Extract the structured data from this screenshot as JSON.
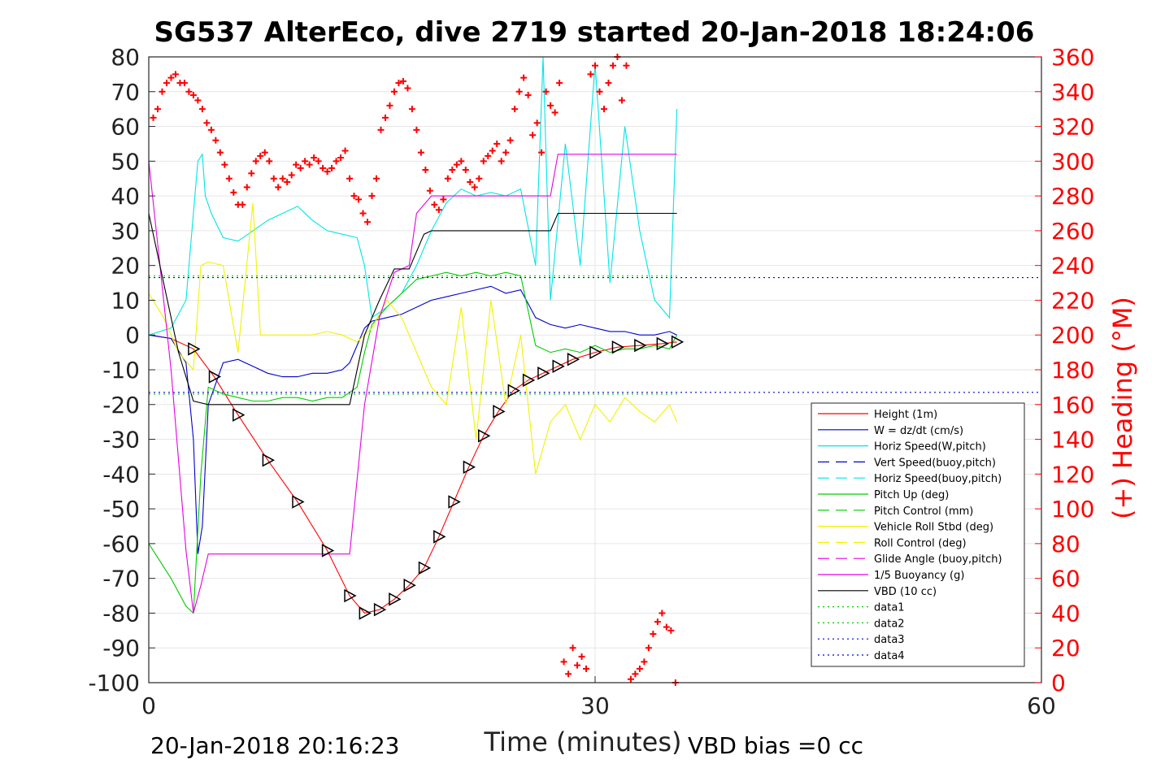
{
  "chart_data": {
    "type": "line",
    "title": "SG537 AlterEco, dive 2719 started 20-Jan-2018 18:24:06",
    "xlabel": "Time (minutes)",
    "ylabel_right": "(+) Heading (°M)",
    "xlim": [
      0,
      60
    ],
    "ylim": [
      -100,
      80
    ],
    "ylim_right": [
      0,
      360
    ],
    "x_ticks": [
      "0",
      "30",
      "60"
    ],
    "y_ticks": [
      "80",
      "70",
      "60",
      "50",
      "40",
      "30",
      "20",
      "10",
      "0",
      "-10",
      "-20",
      "-30",
      "-40",
      "-50",
      "-60",
      "-70",
      "-80",
      "-90",
      "-100"
    ],
    "y_ticks_right": [
      "360",
      "340",
      "320",
      "300",
      "280",
      "260",
      "240",
      "220",
      "200",
      "180",
      "160",
      "140",
      "120",
      "100",
      "80",
      "60",
      "40",
      "20",
      "0"
    ],
    "grid": true,
    "legend_position": "bottom-right",
    "footer_left": "20-Jan-2018 20:16:23",
    "footer_right": "VBD bias =0 cc",
    "legend": [
      {
        "label": "Height (1m)",
        "color": "#ff0000",
        "dash": "solid"
      },
      {
        "label": "W = dz/dt (cm/s)",
        "color": "#0000cc",
        "dash": "solid"
      },
      {
        "label": "Horiz Speed(W,pitch)",
        "color": "#00e5e5",
        "dash": "solid"
      },
      {
        "label": "Vert Speed(buoy,pitch)",
        "color": "#0000cc",
        "dash": "dashed"
      },
      {
        "label": "Horiz Speed(buoy,pitch)",
        "color": "#00e5e5",
        "dash": "dashed"
      },
      {
        "label": "Pitch Up (deg)",
        "color": "#00cc00",
        "dash": "solid"
      },
      {
        "label": "Pitch Control (mm)",
        "color": "#00cc00",
        "dash": "dashed"
      },
      {
        "label": "Vehicle Roll Stbd (deg)",
        "color": "#f2f200",
        "dash": "solid"
      },
      {
        "label": "Roll Control (deg)",
        "color": "#f2f200",
        "dash": "dashed"
      },
      {
        "label": "Glide Angle (buoy,pitch)",
        "color": "#e600e6",
        "dash": "dashed"
      },
      {
        "label": "1/5 Buoyancy (g)",
        "color": "#e600e6",
        "dash": "solid"
      },
      {
        "label": "VBD (10 cc)",
        "color": "#000000",
        "dash": "solid"
      },
      {
        "label": "data1",
        "color": "#00cc00",
        "dash": "dotted"
      },
      {
        "label": "data2",
        "color": "#00cc00",
        "dash": "dotted"
      },
      {
        "label": "data3",
        "color": "#0000cc",
        "dash": "dotted"
      },
      {
        "label": "data4",
        "color": "#0000cc",
        "dash": "dotted"
      }
    ],
    "series": [
      {
        "name": "Height (1m)",
        "color": "#ff0000",
        "x": [
          0,
          1.5,
          3,
          4.4,
          6,
          8,
          10,
          12,
          13.5,
          14.5,
          15.5,
          16.5,
          17.5,
          18.5,
          19.5,
          20.5,
          21.5,
          22.5,
          23.5,
          24.5,
          25.5,
          26.5,
          27.5,
          28.5,
          30,
          31.5,
          33,
          34.5,
          35.5
        ],
        "y": [
          0,
          -1,
          -4,
          -12,
          -23,
          -36,
          -48,
          -62,
          -75,
          -80,
          -79,
          -76,
          -72,
          -67,
          -58,
          -48,
          -38,
          -29,
          -22,
          -16,
          -13,
          -11,
          -9,
          -7,
          -5,
          -3.5,
          -3,
          -2.5,
          -2
        ]
      },
      {
        "name": "W = dz/dt (cm/s)",
        "color": "#0000cc",
        "x": [
          0,
          1.5,
          2.5,
          3,
          3.3,
          3.6,
          4,
          5,
          6,
          7,
          8,
          9,
          10,
          11,
          12,
          13,
          13.5,
          14,
          14.5,
          15,
          16,
          17,
          18,
          19,
          20,
          21,
          22,
          23,
          24,
          25,
          26,
          27,
          28,
          29,
          30,
          31,
          32,
          33,
          34,
          35,
          35.5
        ],
        "y": [
          0,
          -1,
          -8,
          -30,
          -63,
          -55,
          -20,
          -8,
          -7,
          -9,
          -11,
          -12,
          -12,
          -11,
          -11,
          -10,
          -8,
          -3,
          2,
          4,
          5,
          6,
          8,
          10,
          11,
          12,
          13,
          14,
          12,
          13,
          5,
          3,
          2,
          3,
          2,
          1,
          1,
          0,
          0,
          1,
          0
        ]
      },
      {
        "name": "Horiz Speed(W,pitch)",
        "color": "#00e5e5",
        "x": [
          0,
          1.5,
          2.5,
          3,
          3.3,
          3.6,
          3.8,
          4.2,
          5,
          6,
          7,
          8,
          9,
          10,
          11,
          12,
          13,
          14,
          14.5,
          15,
          16,
          17,
          18,
          19,
          20,
          21,
          22,
          23,
          24,
          25,
          26,
          26.5,
          27,
          28,
          29,
          30,
          31,
          32,
          33,
          34,
          35,
          35.5
        ],
        "y": [
          0,
          2,
          10,
          35,
          50,
          52,
          40,
          35,
          28,
          27,
          30,
          33,
          35,
          37,
          33,
          30,
          29,
          28,
          20,
          5,
          8,
          12,
          20,
          30,
          38,
          42,
          40,
          41,
          40,
          42,
          20,
          80,
          10,
          55,
          20,
          78,
          15,
          60,
          30,
          10,
          5,
          65
        ]
      },
      {
        "name": "Pitch Up (deg)",
        "color": "#00cc00",
        "x": [
          0,
          1.5,
          2.5,
          3,
          3.5,
          4,
          5,
          6,
          7,
          8,
          9,
          10,
          11,
          12,
          13,
          14,
          14.5,
          15,
          16,
          17,
          18,
          19,
          20,
          21,
          22,
          23,
          24,
          25,
          26,
          27,
          28,
          29,
          30,
          31,
          32,
          33,
          34,
          35,
          35.5
        ],
        "y": [
          -60,
          -70,
          -78,
          -80,
          -40,
          -15,
          -17,
          -18,
          -19,
          -19,
          -18,
          -18,
          -19,
          -18,
          -18,
          -15,
          -5,
          3,
          8,
          12,
          16,
          17,
          18,
          17,
          18,
          17,
          18,
          17,
          -3,
          -5,
          -4,
          -5,
          -3,
          -5,
          -4,
          -4,
          -3,
          -4,
          0
        ]
      },
      {
        "name": "Vehicle Roll Stbd (deg)",
        "color": "#f2f200",
        "x": [
          0,
          1,
          2,
          3,
          3.5,
          4,
          5,
          6,
          7,
          7.5,
          8,
          9,
          10,
          11,
          12,
          13,
          14,
          15,
          16,
          17,
          18,
          19,
          20,
          21,
          22,
          23,
          24,
          25,
          26,
          27,
          28,
          29,
          30,
          31,
          32,
          33,
          34,
          35,
          35.5
        ],
        "y": [
          12,
          5,
          -5,
          -10,
          20,
          21,
          20,
          -5,
          38,
          0,
          0,
          0,
          0,
          0,
          1,
          0,
          -2,
          2,
          10,
          5,
          -5,
          -15,
          -20,
          8,
          -30,
          10,
          -20,
          0,
          -40,
          -25,
          -20,
          -30,
          -20,
          -25,
          -18,
          -22,
          -25,
          -20,
          -25
        ]
      },
      {
        "name": "1/5 Buoyancy (g)",
        "color": "#e600e6",
        "x": [
          0,
          0.5,
          1.5,
          2.5,
          3,
          3.5,
          4,
          5,
          8,
          10,
          12,
          13,
          13.5,
          14.5,
          15.5,
          16.5,
          17.5,
          18,
          19,
          20,
          22,
          24,
          26,
          27,
          27.5,
          28,
          30,
          35.5
        ],
        "y": [
          50,
          30,
          -10,
          -62,
          -80,
          -72,
          -63,
          -63,
          -63,
          -63,
          -63,
          -63,
          -63,
          -20,
          5,
          18,
          20,
          35,
          40,
          40,
          40,
          40,
          40,
          40,
          52,
          52,
          52,
          52
        ]
      },
      {
        "name": "VBD (10 cc)",
        "color": "#000000",
        "x": [
          0,
          1,
          2,
          3,
          4,
          5,
          8,
          10,
          12,
          13.5,
          14.5,
          15.5,
          16.5,
          17.5,
          18.5,
          19,
          20,
          22,
          24,
          26,
          27,
          27.5,
          28,
          30,
          32,
          35.5
        ],
        "y": [
          35,
          15,
          -5,
          -19,
          -20,
          -20,
          -20,
          -20,
          -20,
          -20,
          0,
          10,
          19,
          19,
          29,
          30,
          30,
          30,
          30,
          30,
          30,
          35,
          35,
          35,
          35,
          35
        ]
      },
      {
        "name": "data1",
        "color": "#00cc00",
        "x": [
          0,
          35.5
        ],
        "y": [
          17,
          17
        ]
      },
      {
        "name": "data2",
        "color": "#00cc00",
        "x": [
          0,
          35.5
        ],
        "y": [
          -17,
          -17
        ]
      },
      {
        "name": "data3",
        "color": "#0000cc",
        "x": [
          0,
          60
        ],
        "y": [
          16.5,
          16.5
        ]
      },
      {
        "name": "data4",
        "color": "#0000cc",
        "x": [
          0,
          60
        ],
        "y": [
          -16.5,
          -16.5
        ]
      },
      {
        "name": "Heading",
        "color": "#ff0000",
        "axis": "right",
        "marker": "+",
        "x": [
          0.3,
          0.6,
          0.9,
          1.2,
          1.5,
          1.8,
          2.1,
          2.4,
          2.7,
          3.0,
          3.3,
          3.6,
          3.9,
          4.2,
          4.5,
          4.8,
          5.1,
          5.4,
          5.7,
          6.0,
          6.3,
          6.6,
          6.9,
          7.2,
          7.5,
          7.8,
          8.1,
          8.4,
          8.7,
          9.0,
          9.3,
          9.6,
          9.9,
          10.2,
          10.5,
          10.8,
          11.1,
          11.4,
          11.7,
          12.0,
          12.3,
          12.6,
          12.9,
          13.2,
          13.5,
          13.8,
          14.1,
          14.4,
          14.7,
          15.0,
          15.3,
          15.6,
          15.9,
          16.2,
          16.5,
          16.8,
          17.1,
          17.4,
          17.7,
          18.0,
          18.3,
          18.6,
          18.9,
          19.2,
          19.5,
          19.8,
          20.1,
          20.4,
          20.7,
          21.0,
          21.3,
          21.6,
          21.9,
          22.2,
          22.5,
          22.8,
          23.1,
          23.4,
          23.7,
          24.0,
          24.3,
          24.6,
          24.9,
          25.2,
          25.5,
          25.8,
          26.1,
          26.4,
          26.7,
          27.0,
          27.3,
          27.6,
          27.9,
          28.2,
          28.5,
          28.8,
          29.1,
          29.4,
          29.7,
          30.0,
          30.3,
          30.6,
          30.9,
          31.2,
          31.5,
          31.8,
          32.1,
          32.4,
          32.7,
          33.0,
          33.3,
          33.6,
          33.9,
          34.2,
          34.5,
          34.8,
          35.1,
          35.4
        ],
        "y": [
          325,
          330,
          340,
          345,
          348,
          350,
          345,
          345,
          340,
          338,
          335,
          330,
          322,
          318,
          312,
          305,
          298,
          290,
          282,
          275,
          275,
          285,
          293,
          300,
          303,
          305,
          300,
          290,
          285,
          290,
          288,
          292,
          298,
          296,
          300,
          298,
          302,
          300,
          296,
          294,
          296,
          300,
          302,
          306,
          290,
          280,
          278,
          270,
          265,
          280,
          290,
          318,
          325,
          332,
          340,
          345,
          346,
          342,
          330,
          318,
          305,
          295,
          283,
          275,
          272,
          278,
          290,
          295,
          298,
          300,
          295,
          288,
          285,
          290,
          300,
          303,
          306,
          310,
          300,
          305,
          312,
          330,
          340,
          348,
          338,
          315,
          322,
          305,
          340,
          332,
          328,
          345,
          12,
          5,
          20,
          10,
          15,
          8,
          350,
          355,
          340,
          330,
          345,
          355,
          360,
          335,
          355,
          2,
          5,
          8,
          12,
          20,
          28,
          35,
          40,
          32,
          30,
          0
        ]
      }
    ]
  }
}
